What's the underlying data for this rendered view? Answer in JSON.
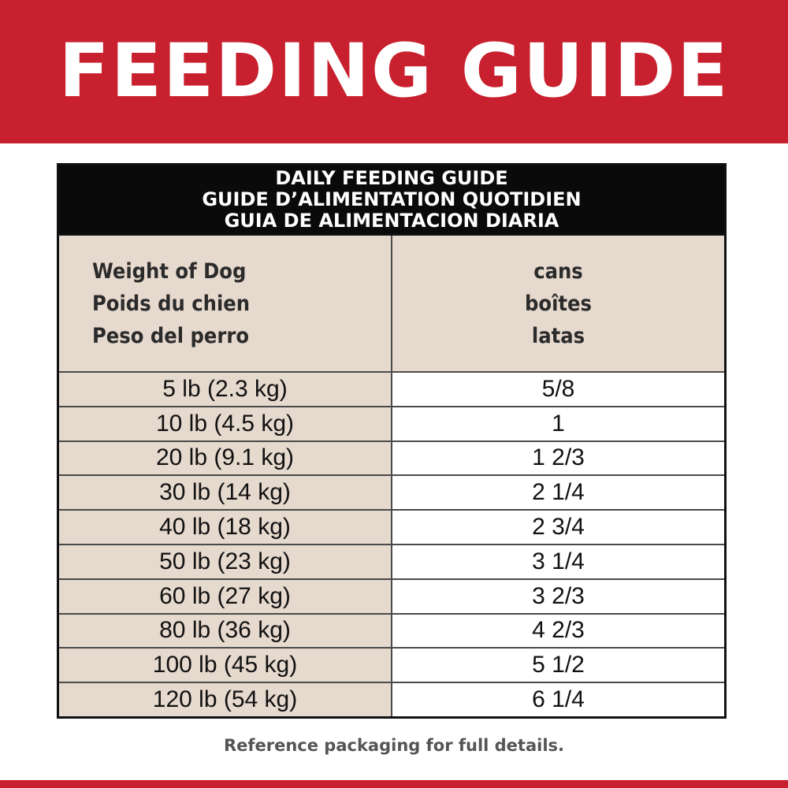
{
  "banner": {
    "title": "FEEDING GUIDE"
  },
  "table": {
    "title_lines": [
      "DAILY FEEDING GUIDE",
      "GUIDE D’ALIMENTATION QUOTIDIEN",
      "GUIA DE ALIMENTACION DIARIA"
    ],
    "weight_header": [
      "Weight of Dog",
      "Poids du chien",
      "Peso del perro"
    ],
    "cans_header": [
      "cans",
      "boîtes",
      "latas"
    ],
    "rows": [
      {
        "weight": "5 lb (2.3 kg)",
        "cans": "5/8"
      },
      {
        "weight": "10 lb (4.5 kg)",
        "cans": "1"
      },
      {
        "weight": "20 lb (9.1 kg)",
        "cans": "1 2/3"
      },
      {
        "weight": "30 lb (14 kg)",
        "cans": "2 1/4"
      },
      {
        "weight": "40 lb (18 kg)",
        "cans": "2 3/4"
      },
      {
        "weight": "50 lb (23 kg)",
        "cans": "3 1/4"
      },
      {
        "weight": "60 lb (27 kg)",
        "cans": "3 2/3"
      },
      {
        "weight": "80 lb (36 kg)",
        "cans": "4 2/3"
      },
      {
        "weight": "100 lb (45 kg)",
        "cans": "5 1/2"
      },
      {
        "weight": "120 lb (54 kg)",
        "cans": "6 1/4"
      }
    ]
  },
  "footer": {
    "note": "Reference packaging for full details."
  },
  "colors": {
    "brand_red": "#c8202e",
    "header_black": "#0a0a0a",
    "beige": "#e6d9ce"
  }
}
